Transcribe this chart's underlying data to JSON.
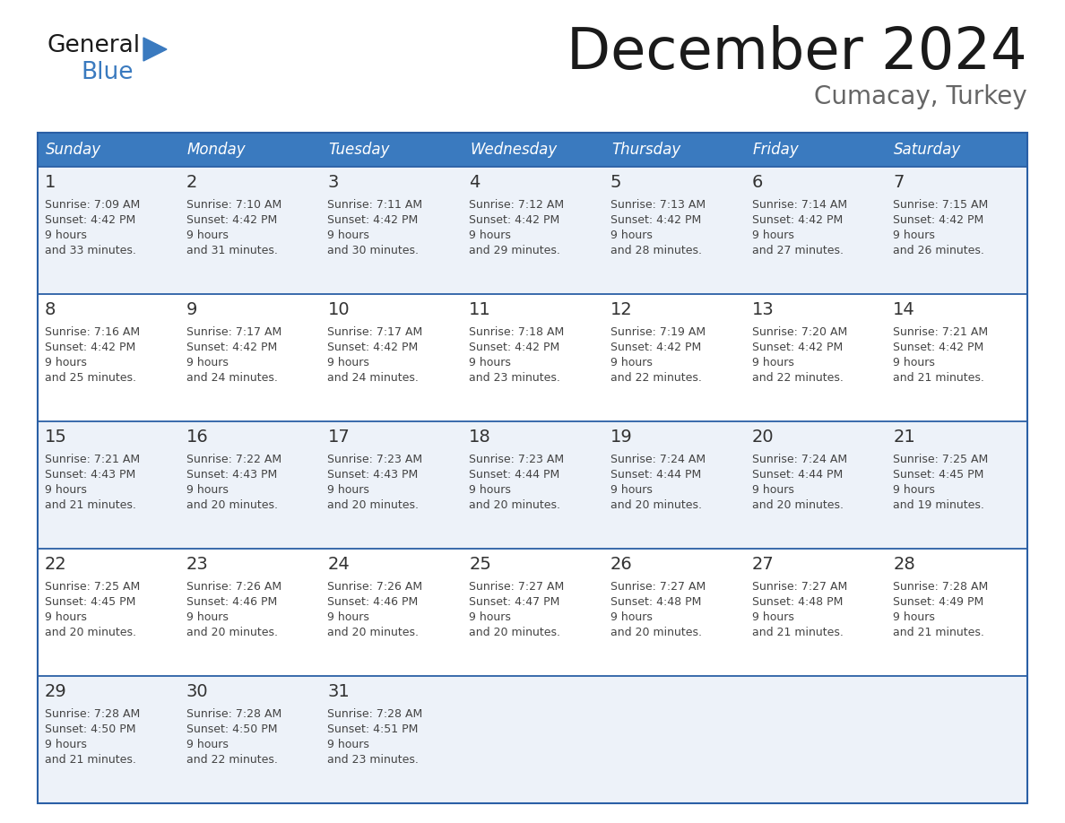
{
  "title": "December 2024",
  "subtitle": "Cumacay, Turkey",
  "header_color": "#3a7abf",
  "header_text_color": "#ffffff",
  "row_bg_even": "#edf2f9",
  "row_bg_odd": "#ffffff",
  "border_color": "#2a5fa5",
  "text_color": "#444444",
  "day_num_color": "#333333",
  "days_of_week": [
    "Sunday",
    "Monday",
    "Tuesday",
    "Wednesday",
    "Thursday",
    "Friday",
    "Saturday"
  ],
  "calendar": [
    [
      {
        "day": 1,
        "sunrise": "7:09 AM",
        "sunset": "4:42 PM",
        "daylight": "9 hours and 33 minutes."
      },
      {
        "day": 2,
        "sunrise": "7:10 AM",
        "sunset": "4:42 PM",
        "daylight": "9 hours and 31 minutes."
      },
      {
        "day": 3,
        "sunrise": "7:11 AM",
        "sunset": "4:42 PM",
        "daylight": "9 hours and 30 minutes."
      },
      {
        "day": 4,
        "sunrise": "7:12 AM",
        "sunset": "4:42 PM",
        "daylight": "9 hours and 29 minutes."
      },
      {
        "day": 5,
        "sunrise": "7:13 AM",
        "sunset": "4:42 PM",
        "daylight": "9 hours and 28 minutes."
      },
      {
        "day": 6,
        "sunrise": "7:14 AM",
        "sunset": "4:42 PM",
        "daylight": "9 hours and 27 minutes."
      },
      {
        "day": 7,
        "sunrise": "7:15 AM",
        "sunset": "4:42 PM",
        "daylight": "9 hours and 26 minutes."
      }
    ],
    [
      {
        "day": 8,
        "sunrise": "7:16 AM",
        "sunset": "4:42 PM",
        "daylight": "9 hours and 25 minutes."
      },
      {
        "day": 9,
        "sunrise": "7:17 AM",
        "sunset": "4:42 PM",
        "daylight": "9 hours and 24 minutes."
      },
      {
        "day": 10,
        "sunrise": "7:17 AM",
        "sunset": "4:42 PM",
        "daylight": "9 hours and 24 minutes."
      },
      {
        "day": 11,
        "sunrise": "7:18 AM",
        "sunset": "4:42 PM",
        "daylight": "9 hours and 23 minutes."
      },
      {
        "day": 12,
        "sunrise": "7:19 AM",
        "sunset": "4:42 PM",
        "daylight": "9 hours and 22 minutes."
      },
      {
        "day": 13,
        "sunrise": "7:20 AM",
        "sunset": "4:42 PM",
        "daylight": "9 hours and 22 minutes."
      },
      {
        "day": 14,
        "sunrise": "7:21 AM",
        "sunset": "4:42 PM",
        "daylight": "9 hours and 21 minutes."
      }
    ],
    [
      {
        "day": 15,
        "sunrise": "7:21 AM",
        "sunset": "4:43 PM",
        "daylight": "9 hours and 21 minutes."
      },
      {
        "day": 16,
        "sunrise": "7:22 AM",
        "sunset": "4:43 PM",
        "daylight": "9 hours and 20 minutes."
      },
      {
        "day": 17,
        "sunrise": "7:23 AM",
        "sunset": "4:43 PM",
        "daylight": "9 hours and 20 minutes."
      },
      {
        "day": 18,
        "sunrise": "7:23 AM",
        "sunset": "4:44 PM",
        "daylight": "9 hours and 20 minutes."
      },
      {
        "day": 19,
        "sunrise": "7:24 AM",
        "sunset": "4:44 PM",
        "daylight": "9 hours and 20 minutes."
      },
      {
        "day": 20,
        "sunrise": "7:24 AM",
        "sunset": "4:44 PM",
        "daylight": "9 hours and 20 minutes."
      },
      {
        "day": 21,
        "sunrise": "7:25 AM",
        "sunset": "4:45 PM",
        "daylight": "9 hours and 19 minutes."
      }
    ],
    [
      {
        "day": 22,
        "sunrise": "7:25 AM",
        "sunset": "4:45 PM",
        "daylight": "9 hours and 20 minutes."
      },
      {
        "day": 23,
        "sunrise": "7:26 AM",
        "sunset": "4:46 PM",
        "daylight": "9 hours and 20 minutes."
      },
      {
        "day": 24,
        "sunrise": "7:26 AM",
        "sunset": "4:46 PM",
        "daylight": "9 hours and 20 minutes."
      },
      {
        "day": 25,
        "sunrise": "7:27 AM",
        "sunset": "4:47 PM",
        "daylight": "9 hours and 20 minutes."
      },
      {
        "day": 26,
        "sunrise": "7:27 AM",
        "sunset": "4:48 PM",
        "daylight": "9 hours and 20 minutes."
      },
      {
        "day": 27,
        "sunrise": "7:27 AM",
        "sunset": "4:48 PM",
        "daylight": "9 hours and 21 minutes."
      },
      {
        "day": 28,
        "sunrise": "7:28 AM",
        "sunset": "4:49 PM",
        "daylight": "9 hours and 21 minutes."
      }
    ],
    [
      {
        "day": 29,
        "sunrise": "7:28 AM",
        "sunset": "4:50 PM",
        "daylight": "9 hours and 21 minutes."
      },
      {
        "day": 30,
        "sunrise": "7:28 AM",
        "sunset": "4:50 PM",
        "daylight": "9 hours and 22 minutes."
      },
      {
        "day": 31,
        "sunrise": "7:28 AM",
        "sunset": "4:51 PM",
        "daylight": "9 hours and 23 minutes."
      },
      null,
      null,
      null,
      null
    ]
  ],
  "logo_text_general": "General",
  "logo_text_blue": "Blue",
  "logo_color_general": "#1a1a1a",
  "logo_color_blue": "#3a7abf",
  "logo_triangle_color": "#3a7abf"
}
